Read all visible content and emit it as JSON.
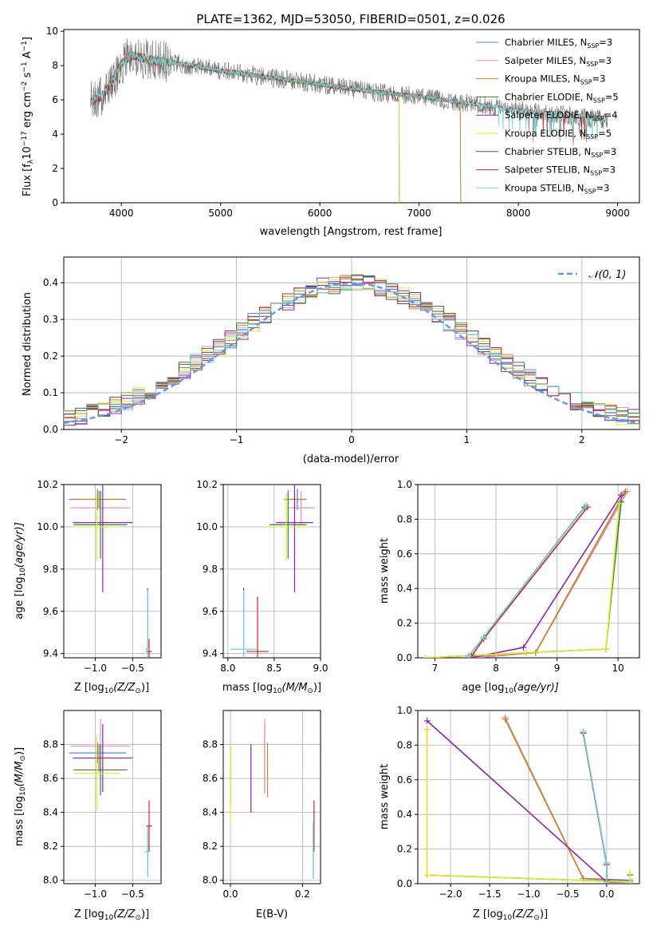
{
  "colors": {
    "series": [
      "#4e79d8",
      "#e58fc0",
      "#c98a1c",
      "#2f7f3f",
      "#8e24aa",
      "#e6e62e",
      "#555555",
      "#c62828",
      "#6fd6d6"
    ],
    "histline": "#6f95e0",
    "grid": "#b0b0b0"
  },
  "chart_data": [
    {
      "id": "spectrum",
      "type": "line",
      "title": "PLATE=1362, MJD=53050, FIBERID=0501, z=0.026",
      "xlabel": "wavelength [Angstrom, rest frame]",
      "ylabel": "Flux [f",
      "ylabel_sub": "λ",
      "ylabel_rest": "10",
      "ylabel_sup1": "−17",
      "ylabel_rest2": " erg cm",
      "ylabel_sup2": "−2",
      "ylabel_rest3": " s",
      "ylabel_sup3": "−1",
      "ylabel_rest4": " A",
      "ylabel_sup4": "−1",
      "ylabel_end": "]",
      "xlim": [
        3420,
        9220
      ],
      "ylim": [
        0,
        10.1
      ],
      "xticks": [
        4000,
        5000,
        6000,
        7000,
        8000,
        9000
      ],
      "yticks": [
        0,
        2,
        4,
        6,
        8,
        10
      ],
      "legend_position": "top-right",
      "series": [
        {
          "name": "Chabrier MILES, N",
          "sub": "SSP",
          "rest": "=3",
          "color": "#4e79d8",
          "range": [
            3690,
            7420
          ]
        },
        {
          "name": "Salpeter MILES, N",
          "sub": "SSP",
          "rest": "=3",
          "color": "#e58fc0",
          "range": [
            3690,
            7420
          ]
        },
        {
          "name": "Kroupa MILES, N",
          "sub": "SSP",
          "rest": "=3",
          "color": "#c98a1c",
          "range": [
            3690,
            7420
          ]
        },
        {
          "name": "Chabrier ELODIE, N",
          "sub": "SSP",
          "rest": "=5",
          "color": "#2f7f3f",
          "range": [
            3900,
            6800
          ]
        },
        {
          "name": "Salpeter ELODIE, N",
          "sub": "SSP",
          "rest": "=4",
          "color": "#8e24aa",
          "range": [
            3900,
            6800
          ]
        },
        {
          "name": "Kroupa ELODIE, N",
          "sub": "SSP",
          "rest": "=5",
          "color": "#e6e62e",
          "range": [
            3900,
            6800
          ]
        },
        {
          "name": "Chabrier STELIB, N",
          "sub": "SSP",
          "rest": "=3",
          "color": "#555555",
          "range": [
            3690,
            8900
          ]
        },
        {
          "name": "Salpeter STELIB, N",
          "sub": "SSP",
          "rest": "=3",
          "color": "#c62828",
          "range": [
            3690,
            8900
          ]
        },
        {
          "name": "Kroupa STELIB, N",
          "sub": "SSP",
          "rest": "=3",
          "color": "#6fd6d6",
          "range": [
            3690,
            8900
          ]
        }
      ],
      "continuum_knots": [
        [
          3700,
          5.9
        ],
        [
          3800,
          6.2
        ],
        [
          3900,
          7.0
        ],
        [
          4000,
          8.1
        ],
        [
          4100,
          8.6
        ],
        [
          4300,
          8.3
        ],
        [
          4500,
          8.2
        ],
        [
          5000,
          7.7
        ],
        [
          5500,
          7.3
        ],
        [
          6000,
          6.9
        ],
        [
          6500,
          6.5
        ],
        [
          7000,
          6.2
        ],
        [
          7500,
          5.8
        ],
        [
          8000,
          5.4
        ],
        [
          8500,
          5.1
        ],
        [
          8900,
          4.8
        ]
      ]
    },
    {
      "id": "residuals",
      "type": "line",
      "xlabel": "(data-model)/error",
      "ylabel": "Normed distribution",
      "xlim": [
        -2.5,
        2.5
      ],
      "ylim": [
        0,
        0.47
      ],
      "xticks": [
        -2,
        -1,
        0,
        1,
        2
      ],
      "yticks": [
        0.0,
        0.1,
        0.2,
        0.3,
        0.4
      ],
      "legend": "𝒩(0, 1)",
      "legend_position": "top-right"
    },
    {
      "id": "z-age",
      "type": "scatter",
      "xlabel": "Z [log",
      "xlabel_sub": "10",
      "xlabel_rest": "(Z/Z",
      "xlabel_sub2": "⊙",
      "xlabel_end": ")]",
      "ylabel": "age  [log",
      "ylabel_sub": "10",
      "ylabel_rest": "(age/yr)]",
      "xlim": [
        -1.42,
        -0.12
      ],
      "ylim": [
        9.38,
        10.2
      ],
      "xticks": [
        -1.0,
        -0.5
      ],
      "xticklabels": [
        "−1.0",
        "−0.5"
      ],
      "yticks": [
        9.4,
        9.6,
        9.8,
        10.0,
        10.2
      ],
      "points": [
        {
          "x": -0.97,
          "y": 10.13,
          "xerr": 0.38,
          "yerr": 0.05,
          "color": "#4e79d8"
        },
        {
          "x": -0.93,
          "y": 10.09,
          "xerr": 0.4,
          "yerr": 0.08,
          "color": "#e58fc0"
        },
        {
          "x": -0.95,
          "y": 10.13,
          "xerr": 0.33,
          "yerr": 0.04,
          "color": "#c98a1c"
        },
        {
          "x": -0.93,
          "y": 10.01,
          "xerr": 0.36,
          "yerr": 0.16,
          "color": "#2f7f3f"
        },
        {
          "x": -0.9,
          "y": 10.02,
          "xerr": 0.4,
          "yerr": 0.33,
          "color": "#8e24aa"
        },
        {
          "x": -0.98,
          "y": 10.0,
          "xerr": 0.3,
          "yerr": 0.16,
          "color": "#e6e62e"
        },
        {
          "x": -0.3,
          "y": 9.42,
          "xerr": 0.02,
          "yerr": 0.29,
          "color": "#555555"
        },
        {
          "x": -0.28,
          "y": 9.41,
          "xerr": 0.04,
          "yerr": 0.06,
          "color": "#c62828"
        },
        {
          "x": -0.3,
          "y": 9.42,
          "xerr": 0.03,
          "yerr": 0.28,
          "color": "#6fd6d6"
        }
      ]
    },
    {
      "id": "mass-age",
      "type": "scatter",
      "xlabel": "mass [log",
      "xlabel_sub": "10",
      "xlabel_rest": "(M/M",
      "xlabel_sub2": "⊙",
      "xlabel_end": ")]",
      "xlim": [
        7.95,
        9.0
      ],
      "ylim": [
        9.38,
        10.2
      ],
      "xticks": [
        8.0,
        8.5,
        9.0
      ],
      "xticklabels": [
        "8.0",
        "8.5",
        "9.0"
      ],
      "yticks": [
        9.4,
        9.6,
        9.8,
        10.0,
        10.2
      ],
      "points": [
        {
          "x": 8.75,
          "y": 10.13,
          "xerr": 0.1,
          "yerr": 0.05,
          "color": "#4e79d8"
        },
        {
          "x": 8.79,
          "y": 10.09,
          "xerr": 0.15,
          "yerr": 0.08,
          "color": "#e58fc0"
        },
        {
          "x": 8.72,
          "y": 10.13,
          "xerr": 0.12,
          "yerr": 0.04,
          "color": "#c98a1c"
        },
        {
          "x": 8.65,
          "y": 10.01,
          "xerr": 0.2,
          "yerr": 0.16,
          "color": "#2f7f3f"
        },
        {
          "x": 8.72,
          "y": 10.02,
          "xerr": 0.2,
          "yerr": 0.33,
          "color": "#8e24aa"
        },
        {
          "x": 8.63,
          "y": 10.0,
          "xerr": 0.24,
          "yerr": 0.16,
          "color": "#e6e62e"
        },
        {
          "x": 8.17,
          "y": 9.42,
          "xerr": 0.14,
          "yerr": 0.29,
          "color": "#555555"
        },
        {
          "x": 8.32,
          "y": 9.41,
          "xerr": 0.12,
          "yerr": 0.26,
          "color": "#c62828"
        },
        {
          "x": 8.17,
          "y": 9.42,
          "xerr": 0.14,
          "yerr": 0.28,
          "color": "#6fd6d6"
        }
      ]
    },
    {
      "id": "weight-age",
      "type": "line",
      "xlabel": "age  [log",
      "xlabel_sub": "10",
      "xlabel_rest": "(age/yr)]",
      "ylabel": "mass weight",
      "xlim": [
        6.72,
        10.35
      ],
      "ylim": [
        0,
        1.0
      ],
      "xticks": [
        7,
        8,
        9,
        10
      ],
      "yticks": [
        0.0,
        0.2,
        0.4,
        0.6,
        0.8,
        1.0
      ],
      "series": [
        {
          "color": "#4e79d8",
          "x": [
            7.65,
            8.65,
            10.1
          ],
          "y": [
            0.0,
            0.03,
            0.95
          ]
        },
        {
          "color": "#e58fc0",
          "x": [
            7.65,
            8.65,
            10.15
          ],
          "y": [
            0.0,
            0.03,
            0.96
          ]
        },
        {
          "color": "#c98a1c",
          "x": [
            7.65,
            8.65,
            10.12
          ],
          "y": [
            0.01,
            0.03,
            0.96
          ]
        },
        {
          "color": "#2f7f3f",
          "x": [
            6.85,
            8.0,
            8.5,
            9.8,
            10.05
          ],
          "y": [
            0.0,
            0.02,
            0.03,
            0.05,
            0.9
          ]
        },
        {
          "color": "#8e24aa",
          "x": [
            7.6,
            8.45,
            10.05
          ],
          "y": [
            0.0,
            0.06,
            0.94
          ]
        },
        {
          "color": "#e6e62e",
          "x": [
            6.85,
            8.0,
            8.5,
            9.8,
            10.02
          ],
          "y": [
            0.0,
            0.02,
            0.03,
            0.05,
            0.89
          ]
        },
        {
          "color": "#555555",
          "x": [
            7.55,
            7.8,
            9.45
          ],
          "y": [
            0.01,
            0.12,
            0.87
          ]
        },
        {
          "color": "#c62828",
          "x": [
            7.6,
            7.8,
            9.5
          ],
          "y": [
            0.01,
            0.11,
            0.87
          ]
        },
        {
          "color": "#6fd6d6",
          "x": [
            7.55,
            7.8,
            9.48
          ],
          "y": [
            0.01,
            0.12,
            0.88
          ]
        }
      ]
    },
    {
      "id": "z-mass",
      "type": "scatter",
      "xlabel": "Z [log",
      "xlabel_sub": "10",
      "xlabel_rest": "(Z/Z",
      "xlabel_sub2": "⊙",
      "xlabel_end": ")]",
      "ylabel": "mass [log",
      "ylabel_sub": "10",
      "ylabel_rest": "(M/M",
      "ylabel_sub2": "⊙",
      "ylabel_end": ")]",
      "xlim": [
        -1.42,
        -0.12
      ],
      "ylim": [
        7.98,
        9.0
      ],
      "xticks": [
        -1.0,
        -0.5
      ],
      "xticklabels": [
        "−1.0",
        "−0.5"
      ],
      "yticks": [
        8.0,
        8.2,
        8.4,
        8.6,
        8.8
      ],
      "points": [
        {
          "x": -0.97,
          "y": 8.75,
          "xerr": 0.38,
          "yerr": 0.06,
          "color": "#4e79d8"
        },
        {
          "x": -0.93,
          "y": 8.79,
          "xerr": 0.4,
          "yerr": 0.16,
          "color": "#e58fc0"
        },
        {
          "x": -0.95,
          "y": 8.72,
          "xerr": 0.33,
          "yerr": 0.08,
          "color": "#c98a1c"
        },
        {
          "x": -0.93,
          "y": 8.65,
          "xerr": 0.36,
          "yerr": 0.15,
          "color": "#2f7f3f"
        },
        {
          "x": -0.9,
          "y": 8.72,
          "xerr": 0.4,
          "yerr": 0.2,
          "color": "#8e24aa"
        },
        {
          "x": -0.98,
          "y": 8.63,
          "xerr": 0.3,
          "yerr": 0.22,
          "color": "#e6e62e"
        },
        {
          "x": -0.3,
          "y": 8.17,
          "xerr": 0.02,
          "yerr": 0.15,
          "color": "#555555"
        },
        {
          "x": -0.28,
          "y": 8.32,
          "xerr": 0.04,
          "yerr": 0.15,
          "color": "#c62828"
        },
        {
          "x": -0.3,
          "y": 8.17,
          "xerr": 0.04,
          "yerr": 0.15,
          "color": "#6fd6d6"
        }
      ]
    },
    {
      "id": "ebv-mass",
      "type": "scatter",
      "xlabel": "E(B-V)",
      "xlim": [
        -0.02,
        0.25
      ],
      "ylim": [
        7.98,
        9.0
      ],
      "xticks": [
        0.0,
        0.2
      ],
      "xticklabels": [
        "0.0",
        "0.2"
      ],
      "yticks": [
        8.0,
        8.2,
        8.4,
        8.6,
        8.8
      ],
      "points": [
        {
          "x": 0.095,
          "y": 8.72,
          "yerr": 0.2,
          "color": "#4e79d8"
        },
        {
          "x": 0.095,
          "y": 8.73,
          "yerr": 0.22,
          "color": "#e58fc0"
        },
        {
          "x": 0.103,
          "y": 8.65,
          "yerr": 0.16,
          "color": "#c98a1c"
        },
        {
          "x": 0.0,
          "y": 8.62,
          "yerr": 0.17,
          "color": "#2f7f3f"
        },
        {
          "x": 0.057,
          "y": 8.6,
          "yerr": 0.2,
          "color": "#8e24aa"
        },
        {
          "x": 0.0,
          "y": 8.57,
          "yerr": 0.22,
          "color": "#e6e62e"
        },
        {
          "x": 0.23,
          "y": 8.17,
          "yerr": 0.16,
          "color": "#555555"
        },
        {
          "x": 0.232,
          "y": 8.32,
          "yerr": 0.15,
          "color": "#c62828"
        },
        {
          "x": 0.23,
          "y": 8.18,
          "yerr": 0.17,
          "color": "#6fd6d6"
        }
      ]
    },
    {
      "id": "weight-z",
      "type": "line",
      "xlabel": "Z [log",
      "xlabel_sub": "10",
      "xlabel_rest": "(Z/Z",
      "xlabel_sub2": "⊙",
      "xlabel_end": ")]",
      "ylabel": "mass weight",
      "xlim": [
        -2.42,
        0.42
      ],
      "ylim": [
        0,
        1.0
      ],
      "xticks": [
        -2.0,
        -1.5,
        -1.0,
        -0.5,
        0.0
      ],
      "xticklabels": [
        "−2.0",
        "−1.5",
        "−1.0",
        "−0.5",
        "0.0"
      ],
      "yticks": [
        0.0,
        0.2,
        0.4,
        0.6,
        0.8,
        1.0
      ],
      "series": [
        {
          "color": "#4e79d8",
          "x": [
            -1.3,
            -0.3,
            0.3
          ],
          "y": [
            0.95,
            0.03,
            0.02
          ]
        },
        {
          "color": "#e58fc0",
          "x": [
            -1.3,
            -0.3,
            0.3
          ],
          "y": [
            0.96,
            0.03,
            0.01
          ]
        },
        {
          "color": "#c98a1c",
          "x": [
            -1.3,
            -0.3,
            0.3
          ],
          "y": [
            0.95,
            0.03,
            0.01
          ]
        },
        {
          "color": "#2f7f3f",
          "x": [
            -2.3,
            -2.3,
            0.3,
            0.3
          ],
          "y": [
            0.89,
            0.05,
            0.01,
            0.05
          ]
        },
        {
          "color": "#8e24aa",
          "x": [
            -2.3,
            0.0,
            0.3
          ],
          "y": [
            0.94,
            0.01,
            0.01
          ]
        },
        {
          "color": "#e6e62e",
          "x": [
            -2.3,
            -2.3,
            0.3,
            0.3
          ],
          "y": [
            0.89,
            0.05,
            0.01,
            0.06
          ]
        },
        {
          "color": "#555555",
          "x": [
            -0.3,
            0.0,
            0.0
          ],
          "y": [
            0.87,
            0.12,
            0.01
          ]
        },
        {
          "color": "#c62828",
          "x": [
            -0.3,
            0.0,
            0.0
          ],
          "y": [
            0.87,
            0.11,
            0.02
          ]
        },
        {
          "color": "#6fd6d6",
          "x": [
            -0.3,
            0.0,
            0.0
          ],
          "y": [
            0.88,
            0.12,
            0.01
          ]
        }
      ]
    }
  ]
}
